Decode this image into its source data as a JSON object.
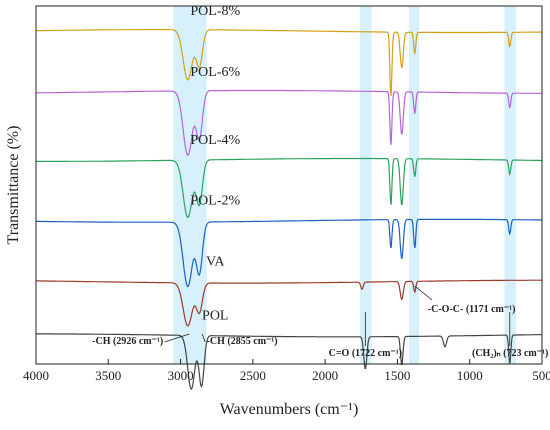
{
  "chart_data": {
    "type": "line",
    "xlabel": "Wavenumbers (cm⁻¹)",
    "ylabel": "Transmittance (%)",
    "xlim": [
      4000,
      500
    ],
    "x_reversed": true,
    "x_ticks": [
      4000,
      3500,
      3000,
      2500,
      2000,
      1500,
      1000,
      500
    ],
    "y_ticks_shown": false,
    "grid": false,
    "legend": "inline labels above each curve",
    "series": [
      {
        "name": "POL-8%",
        "color": "#d4a017",
        "baseline": 0.93,
        "peaks": [
          {
            "x": 2950,
            "depth": 0.14,
            "width": 45
          },
          {
            "x": 2870,
            "depth": 0.1,
            "width": 30
          },
          {
            "x": 1545,
            "depth": 0.18,
            "width": 10
          },
          {
            "x": 1470,
            "depth": 0.1,
            "width": 15
          },
          {
            "x": 1380,
            "depth": 0.06,
            "width": 10
          },
          {
            "x": 723,
            "depth": 0.04,
            "width": 10
          }
        ]
      },
      {
        "name": "POL-6%",
        "color": "#b565d8",
        "baseline": 0.76,
        "peaks": [
          {
            "x": 2950,
            "depth": 0.18,
            "width": 45
          },
          {
            "x": 2870,
            "depth": 0.13,
            "width": 30
          },
          {
            "x": 1545,
            "depth": 0.15,
            "width": 10
          },
          {
            "x": 1470,
            "depth": 0.12,
            "width": 15
          },
          {
            "x": 1380,
            "depth": 0.06,
            "width": 10
          },
          {
            "x": 723,
            "depth": 0.04,
            "width": 10
          }
        ]
      },
      {
        "name": "POL-4%",
        "color": "#2ca25f",
        "baseline": 0.57,
        "peaks": [
          {
            "x": 2950,
            "depth": 0.16,
            "width": 45
          },
          {
            "x": 2870,
            "depth": 0.12,
            "width": 30
          },
          {
            "x": 1545,
            "depth": 0.13,
            "width": 10
          },
          {
            "x": 1470,
            "depth": 0.13,
            "width": 15
          },
          {
            "x": 1380,
            "depth": 0.05,
            "width": 10
          },
          {
            "x": 723,
            "depth": 0.04,
            "width": 10
          }
        ]
      },
      {
        "name": "POL-2%",
        "color": "#1f5fbf",
        "baseline": 0.4,
        "peaks": [
          {
            "x": 2950,
            "depth": 0.18,
            "width": 45
          },
          {
            "x": 2870,
            "depth": 0.14,
            "width": 30
          },
          {
            "x": 1545,
            "depth": 0.08,
            "width": 10
          },
          {
            "x": 1470,
            "depth": 0.11,
            "width": 15
          },
          {
            "x": 1380,
            "depth": 0.08,
            "width": 10
          },
          {
            "x": 723,
            "depth": 0.04,
            "width": 10
          }
        ]
      },
      {
        "name": "VA",
        "color": "#9b3b2e",
        "baseline": 0.23,
        "peaks": [
          {
            "x": 2950,
            "depth": 0.12,
            "width": 45
          },
          {
            "x": 2870,
            "depth": 0.08,
            "width": 30
          },
          {
            "x": 1745,
            "depth": 0.02,
            "width": 12
          },
          {
            "x": 1470,
            "depth": 0.05,
            "width": 15
          },
          {
            "x": 1380,
            "depth": 0.03,
            "width": 10
          }
        ]
      },
      {
        "name": "POL",
        "color": "#444444",
        "baseline": 0.08,
        "peaks": [
          {
            "x": 2926,
            "depth": 0.15,
            "width": 35
          },
          {
            "x": 2855,
            "depth": 0.14,
            "width": 25
          },
          {
            "x": 1722,
            "depth": 0.09,
            "width": 15
          },
          {
            "x": 1470,
            "depth": 0.08,
            "width": 12
          },
          {
            "x": 1171,
            "depth": 0.03,
            "width": 15
          },
          {
            "x": 723,
            "depth": 0.08,
            "width": 10
          }
        ]
      }
    ],
    "highlight_bands": [
      {
        "x0": 3050,
        "x1": 2820,
        "color": "#cfeffa"
      },
      {
        "x0": 1760,
        "x1": 1680,
        "color": "#cfeffa"
      },
      {
        "x0": 1420,
        "x1": 1350,
        "color": "#cfeffa"
      },
      {
        "x0": 760,
        "x1": 680,
        "color": "#cfeffa"
      }
    ],
    "annotations": [
      {
        "id": "ch-2926",
        "text": "-CH (2926 cm⁻¹)",
        "x": 2926
      },
      {
        "id": "ch-2855",
        "text": "-CH (2855 cm⁻¹)",
        "x": 2855
      },
      {
        "id": "co-1722",
        "text": "C=O (1722 cm⁻¹)",
        "x": 1722
      },
      {
        "id": "coc-1171",
        "text": "-C-O-C- (1171 cm⁻¹)",
        "x": 1171
      },
      {
        "id": "ch2-723",
        "text": "(CH₂)ₙ (723 cm⁻¹)",
        "x": 723
      }
    ]
  }
}
